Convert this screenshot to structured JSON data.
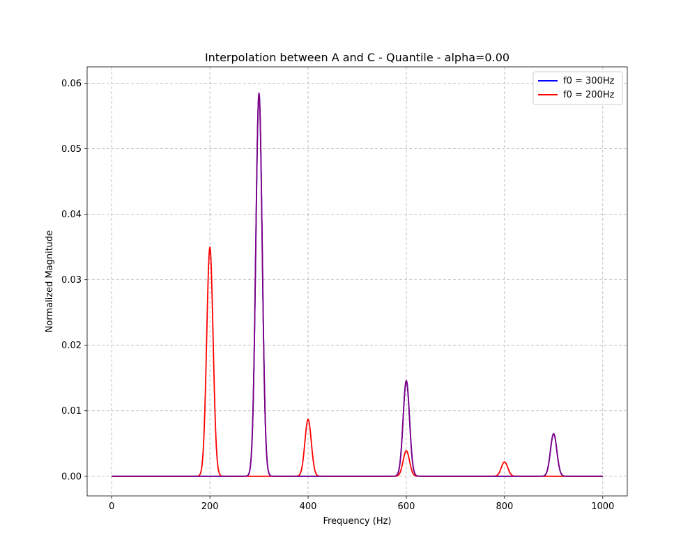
{
  "chart_data": {
    "type": "line",
    "title": "Interpolation between A and C - Quantile - alpha=0.00",
    "xlabel": "Frequency (Hz)",
    "ylabel": "Normalized Magnitude",
    "xlim": [
      -50,
      1050
    ],
    "ylim": [
      -0.003,
      0.0625
    ],
    "x_ticks": [
      0,
      200,
      400,
      600,
      800,
      1000
    ],
    "x_tick_labels": [
      "0",
      "200",
      "400",
      "600",
      "800",
      "1000"
    ],
    "y_ticks": [
      0.0,
      0.01,
      0.02,
      0.03,
      0.04,
      0.05,
      0.06
    ],
    "y_tick_labels": [
      "0.00",
      "0.01",
      "0.02",
      "0.03",
      "0.04",
      "0.05",
      "0.06"
    ],
    "grid": true,
    "legend_position": "top-right",
    "x_range": [
      0,
      1000
    ],
    "series": [
      {
        "name": "f0 = 300Hz",
        "color": "#0000ff",
        "peaks": [
          {
            "x": 300,
            "y": 0.0585
          },
          {
            "x": 600,
            "y": 0.0146
          },
          {
            "x": 900,
            "y": 0.0065
          }
        ]
      },
      {
        "name": "f0 = 200Hz",
        "color": "#ff0000",
        "peaks": [
          {
            "x": 200,
            "y": 0.035
          },
          {
            "x": 400,
            "y": 0.0087
          },
          {
            "x": 600,
            "y": 0.0039
          },
          {
            "x": 800,
            "y": 0.0022
          }
        ]
      },
      {
        "color": "#800080",
        "peaks": [
          {
            "x": 300,
            "y": 0.0585
          },
          {
            "x": 600,
            "y": 0.0146
          },
          {
            "x": 900,
            "y": 0.0065
          }
        ]
      }
    ]
  }
}
